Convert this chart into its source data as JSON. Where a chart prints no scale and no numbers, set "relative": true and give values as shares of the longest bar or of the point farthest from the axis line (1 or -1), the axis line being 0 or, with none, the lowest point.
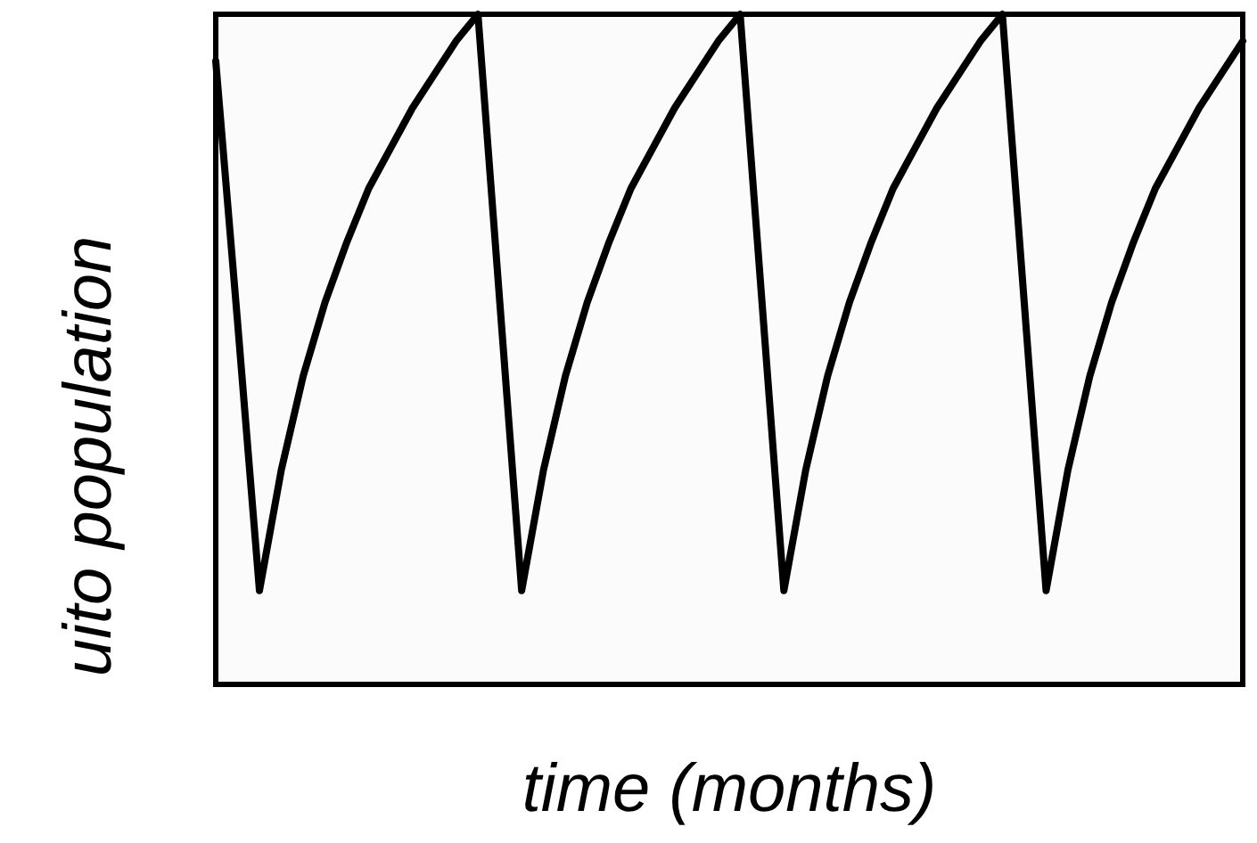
{
  "chart_data": {
    "type": "line",
    "relative": true,
    "xlabel": "time (months)",
    "ylabel": "uito population",
    "categories": [
      null,
      null,
      null,
      null,
      null,
      null,
      null,
      null,
      null,
      null,
      null,
      null,
      null,
      null,
      null,
      null,
      null,
      null,
      null,
      null,
      null,
      null,
      null,
      null,
      null,
      null,
      null,
      null,
      null,
      null,
      null,
      null,
      null,
      null,
      null,
      null,
      null,
      null,
      null,
      null,
      null,
      null,
      null,
      null,
      null,
      null,
      null,
      null
    ],
    "series": [
      {
        "color": "#000000",
        "values": [
          0.93,
          0.54,
          0.14,
          0.32,
          0.46,
          0.57,
          0.66,
          0.74,
          0.8,
          0.86,
          0.91,
          0.96,
          1.0,
          0.57,
          0.14,
          0.32,
          0.46,
          0.57,
          0.66,
          0.74,
          0.8,
          0.86,
          0.91,
          0.96,
          1.0,
          0.57,
          0.14,
          0.32,
          0.46,
          0.57,
          0.66,
          0.74,
          0.8,
          0.86,
          0.91,
          0.96,
          1.0,
          0.57,
          0.14,
          0.32,
          0.46,
          0.57,
          0.66,
          0.74,
          0.8,
          0.86,
          0.91,
          0.96
        ]
      }
    ]
  }
}
